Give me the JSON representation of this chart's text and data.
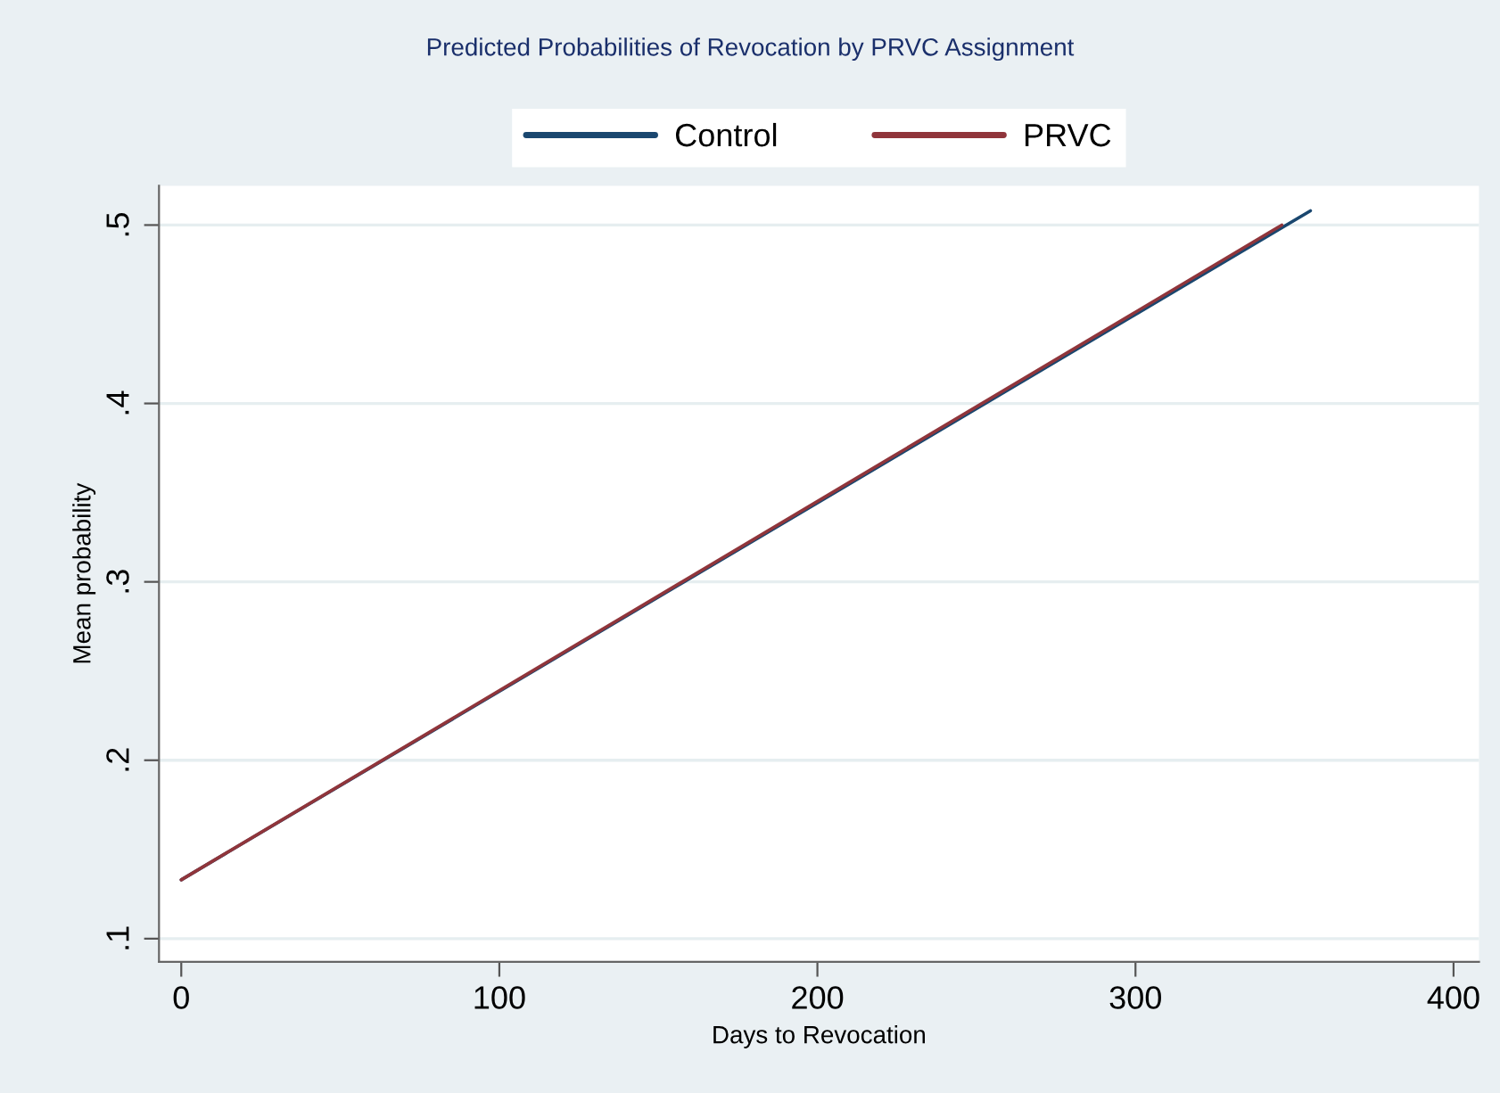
{
  "chart_data": {
    "type": "line",
    "title": "Predicted Probabilities of Revocation by PRVC Assignment",
    "xlabel": "Days to Revocation",
    "ylabel": "Mean probability",
    "series": [
      {
        "name": "Control",
        "color": "#1a476f",
        "x": [
          0,
          355
        ],
        "values": [
          0.133,
          0.508
        ]
      },
      {
        "name": "PRVC",
        "color": "#90353b",
        "x": [
          0,
          346
        ],
        "values": [
          0.133,
          0.5
        ]
      }
    ],
    "xlim": [
      -7,
      408
    ],
    "ylim": [
      0.087,
      0.522
    ],
    "xticks": [
      0,
      100,
      200,
      300,
      400
    ],
    "yticks": [
      {
        "value": 0.1,
        "label": ".1"
      },
      {
        "value": 0.2,
        "label": ".2"
      },
      {
        "value": 0.3,
        "label": ".3"
      },
      {
        "value": 0.4,
        "label": ".4"
      },
      {
        "value": 0.5,
        "label": ".5"
      }
    ],
    "grid": "y",
    "legend": "top",
    "marker": "none",
    "line_style": "solid"
  }
}
